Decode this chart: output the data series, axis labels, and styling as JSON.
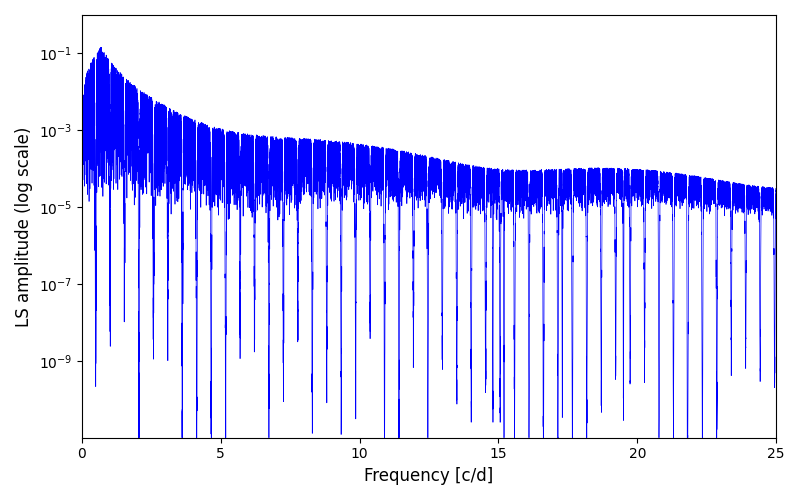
{
  "xlabel": "Frequency [c/d]",
  "ylabel": "LS amplitude (log scale)",
  "line_color": "#0000FF",
  "line_width": 0.5,
  "xlim": [
    0,
    25
  ],
  "ylim": [
    1e-11,
    1.0
  ],
  "yticks": [
    1e-09,
    1e-07,
    1e-05,
    0.001,
    0.1
  ],
  "xticks": [
    0,
    5,
    10,
    15,
    20,
    25
  ],
  "figsize": [
    8.0,
    5.0
  ],
  "dpi": 100,
  "seed": 42,
  "n_points": 20000,
  "freq_max": 25.0,
  "background_color": "#ffffff"
}
